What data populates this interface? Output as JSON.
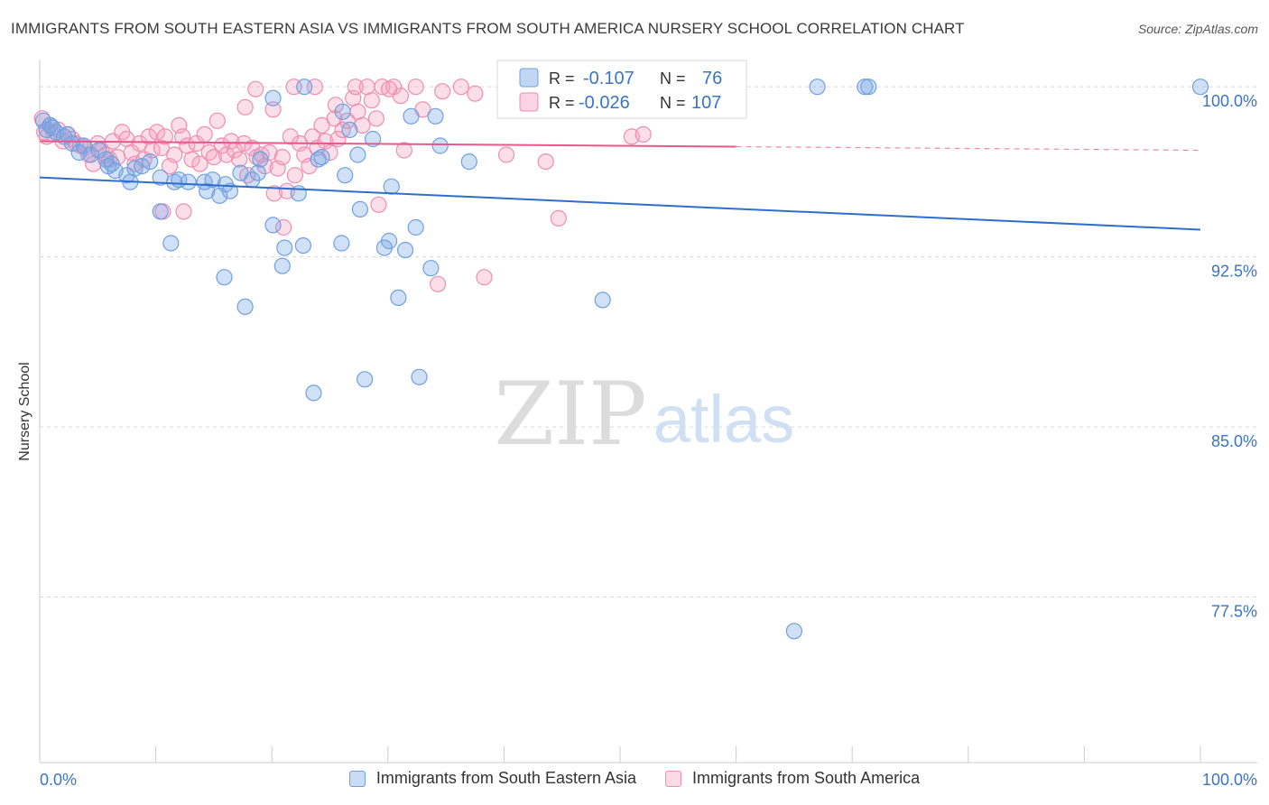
{
  "header": {
    "title": "IMMIGRANTS FROM SOUTH EASTERN ASIA VS IMMIGRANTS FROM SOUTH AMERICA NURSERY SCHOOL CORRELATION CHART",
    "source": "Source: ZipAtlas.com"
  },
  "watermark": {
    "zip": "ZIP",
    "atlas": "atlas"
  },
  "colors": {
    "blue": "#6fa0e0",
    "blue_fill": "rgba(120,165,230,0.35)",
    "blue_line": "#2e6fcc",
    "pink": "#f08db0",
    "pink_fill": "rgba(245,160,190,0.35)",
    "pink_line": "#e8588a",
    "axis_text": "#3a74c4"
  },
  "legend_box": {
    "r_label": "R =",
    "n_label": "N =",
    "rows": [
      {
        "series": "Immigrants from South Eastern Asia",
        "r": "-0.107",
        "n": "76"
      },
      {
        "series": "Immigrants from South America",
        "r": "-0.026",
        "n": "107"
      }
    ]
  },
  "chart_data": {
    "type": "scatter",
    "title": "IMMIGRANTS FROM SOUTH EASTERN ASIA VS IMMIGRANTS FROM SOUTH AMERICA NURSERY SCHOOL CORRELATION CHART",
    "xlabel": "",
    "ylabel": "Nursery School",
    "xlim": [
      0,
      100
    ],
    "ylim": [
      70.2,
      101.2
    ],
    "x_tick_labels": [
      "0.0%",
      "100.0%"
    ],
    "y_ticks": [
      77.5,
      85.0,
      92.5,
      100.0
    ],
    "y_tick_labels": [
      "77.5%",
      "85.0%",
      "92.5%",
      "100.0%"
    ],
    "grid": "horizontal dashed",
    "legend_position": "bottom",
    "series": [
      {
        "name": "Immigrants from South Eastern Asia",
        "color": "blue",
        "r": -0.107,
        "n": 76,
        "trend": {
          "x": [
            0,
            100
          ],
          "y": [
            96.0,
            93.7
          ],
          "dashed_from": null
        },
        "points": [
          [
            0.3,
            98.5
          ],
          [
            0.6,
            98.1
          ],
          [
            0.9,
            98.3
          ],
          [
            1.4,
            98.0
          ],
          [
            2.1,
            97.8
          ],
          [
            2.8,
            97.5
          ],
          [
            3.4,
            97.1
          ],
          [
            3.8,
            97.4
          ],
          [
            4.4,
            97.0
          ],
          [
            5.1,
            97.2
          ],
          [
            5.7,
            96.8
          ],
          [
            5.9,
            96.5
          ],
          [
            6.5,
            96.3
          ],
          [
            7.5,
            96.1
          ],
          [
            7.8,
            95.8
          ],
          [
            8.2,
            96.4
          ],
          [
            8.8,
            96.5
          ],
          [
            9.5,
            96.7
          ],
          [
            10.4,
            96.0
          ],
          [
            11.6,
            95.8
          ],
          [
            12.0,
            95.9
          ],
          [
            12.8,
            95.8
          ],
          [
            14.2,
            95.8
          ],
          [
            14.4,
            95.4
          ],
          [
            14.9,
            95.9
          ],
          [
            15.5,
            95.2
          ],
          [
            16.0,
            95.7
          ],
          [
            16.4,
            95.4
          ],
          [
            17.3,
            96.2
          ],
          [
            18.3,
            95.9
          ],
          [
            18.8,
            96.2
          ],
          [
            19.0,
            96.8
          ],
          [
            10.4,
            94.5
          ],
          [
            11.3,
            93.1
          ],
          [
            15.9,
            91.6
          ],
          [
            17.7,
            90.3
          ],
          [
            20.1,
            93.9
          ],
          [
            21.1,
            92.9
          ],
          [
            20.9,
            92.1
          ],
          [
            22.7,
            93.0
          ],
          [
            22.3,
            95.3
          ],
          [
            24.0,
            96.8
          ],
          [
            24.3,
            96.9
          ],
          [
            26.0,
            93.1
          ],
          [
            26.3,
            96.1
          ],
          [
            26.7,
            98.1
          ],
          [
            27.4,
            97.0
          ],
          [
            28.7,
            97.7
          ],
          [
            27.6,
            94.6
          ],
          [
            28.0,
            87.1
          ],
          [
            29.7,
            92.9
          ],
          [
            30.1,
            93.2
          ],
          [
            30.3,
            95.6
          ],
          [
            30.9,
            90.7
          ],
          [
            31.5,
            92.8
          ],
          [
            32.0,
            98.7
          ],
          [
            32.4,
            93.8
          ],
          [
            34.1,
            98.7
          ],
          [
            34.5,
            97.4
          ],
          [
            33.7,
            92.0
          ],
          [
            32.7,
            87.2
          ],
          [
            23.6,
            86.5
          ],
          [
            22.8,
            100.0
          ],
          [
            20.1,
            99.5
          ],
          [
            26.1,
            98.9
          ],
          [
            37.0,
            96.7
          ],
          [
            48.5,
            90.6
          ],
          [
            50.4,
            100.0
          ],
          [
            67.0,
            100.0
          ],
          [
            71.1,
            100.0
          ],
          [
            71.4,
            100.0
          ],
          [
            65.0,
            76.0
          ],
          [
            100.0,
            100.0
          ],
          [
            1.1,
            98.2
          ],
          [
            2.4,
            97.9
          ],
          [
            6.2,
            96.6
          ]
        ]
      },
      {
        "name": "Immigrants from South America",
        "color": "pink",
        "r": -0.026,
        "n": 107,
        "trend": {
          "x": [
            0,
            100
          ],
          "y": [
            97.6,
            97.2
          ],
          "dashed_from": 60
        },
        "points": [
          [
            0.2,
            98.6
          ],
          [
            0.4,
            98.0
          ],
          [
            0.6,
            97.8
          ],
          [
            0.9,
            98.3
          ],
          [
            1.2,
            97.9
          ],
          [
            1.6,
            98.1
          ],
          [
            2.0,
            97.6
          ],
          [
            2.4,
            97.9
          ],
          [
            2.8,
            97.7
          ],
          [
            3.1,
            97.5
          ],
          [
            3.5,
            97.4
          ],
          [
            3.9,
            97.3
          ],
          [
            4.2,
            97.0
          ],
          [
            4.6,
            96.6
          ],
          [
            5.0,
            97.5
          ],
          [
            5.3,
            97.2
          ],
          [
            5.7,
            97.0
          ],
          [
            6.0,
            96.8
          ],
          [
            6.3,
            97.6
          ],
          [
            6.7,
            96.9
          ],
          [
            7.1,
            98.0
          ],
          [
            7.5,
            97.7
          ],
          [
            7.9,
            97.1
          ],
          [
            8.2,
            96.6
          ],
          [
            8.6,
            97.5
          ],
          [
            9.0,
            96.8
          ],
          [
            9.4,
            97.8
          ],
          [
            9.7,
            97.2
          ],
          [
            10.1,
            98.0
          ],
          [
            10.5,
            97.3
          ],
          [
            10.8,
            97.8
          ],
          [
            11.2,
            96.5
          ],
          [
            11.6,
            97.0
          ],
          [
            12.0,
            98.3
          ],
          [
            12.3,
            97.8
          ],
          [
            12.7,
            97.4
          ],
          [
            13.1,
            96.8
          ],
          [
            13.5,
            97.5
          ],
          [
            13.8,
            96.6
          ],
          [
            14.2,
            97.9
          ],
          [
            14.6,
            97.1
          ],
          [
            15.0,
            96.9
          ],
          [
            15.3,
            98.5
          ],
          [
            15.7,
            97.4
          ],
          [
            16.1,
            97.0
          ],
          [
            16.5,
            97.6
          ],
          [
            16.8,
            97.2
          ],
          [
            17.2,
            96.8
          ],
          [
            17.6,
            97.5
          ],
          [
            17.9,
            96.1
          ],
          [
            18.3,
            97.3
          ],
          [
            18.7,
            96.9
          ],
          [
            19.1,
            97.0
          ],
          [
            19.4,
            96.5
          ],
          [
            19.8,
            97.1
          ],
          [
            20.2,
            95.3
          ],
          [
            20.5,
            96.4
          ],
          [
            20.9,
            96.9
          ],
          [
            21.3,
            95.4
          ],
          [
            21.6,
            97.8
          ],
          [
            22.0,
            96.1
          ],
          [
            22.4,
            97.5
          ],
          [
            22.8,
            97.0
          ],
          [
            23.2,
            96.5
          ],
          [
            23.5,
            97.8
          ],
          [
            23.9,
            97.3
          ],
          [
            24.3,
            98.3
          ],
          [
            24.6,
            97.6
          ],
          [
            25.0,
            97.1
          ],
          [
            25.4,
            98.6
          ],
          [
            25.7,
            97.7
          ],
          [
            26.1,
            98.1
          ],
          [
            26.5,
            98.5
          ],
          [
            27.0,
            99.5
          ],
          [
            27.4,
            98.9
          ],
          [
            27.8,
            98.3
          ],
          [
            28.2,
            100.0
          ],
          [
            28.6,
            99.4
          ],
          [
            29.0,
            98.6
          ],
          [
            29.5,
            100.0
          ],
          [
            30.5,
            100.0
          ],
          [
            31.1,
            99.6
          ],
          [
            31.4,
            97.2
          ],
          [
            32.4,
            100.0
          ],
          [
            33.0,
            99.0
          ],
          [
            34.7,
            99.8
          ],
          [
            36.3,
            100.0
          ],
          [
            37.5,
            99.7
          ],
          [
            10.6,
            94.5
          ],
          [
            12.4,
            94.5
          ],
          [
            21.0,
            93.8
          ],
          [
            29.2,
            94.8
          ],
          [
            34.3,
            91.3
          ],
          [
            38.3,
            91.6
          ],
          [
            40.2,
            97.0
          ],
          [
            43.6,
            96.7
          ],
          [
            44.7,
            94.2
          ],
          [
            51.0,
            97.8
          ],
          [
            52.0,
            97.9
          ],
          [
            17.7,
            99.1
          ],
          [
            18.6,
            99.9
          ],
          [
            20.1,
            99.0
          ],
          [
            21.9,
            100.0
          ],
          [
            23.7,
            100.0
          ],
          [
            25.5,
            99.2
          ],
          [
            27.2,
            100.0
          ],
          [
            30.1,
            99.9
          ]
        ]
      }
    ]
  },
  "bottom_legend": {
    "items": [
      {
        "label": "Immigrants from South Eastern Asia"
      },
      {
        "label": "Immigrants from South America"
      }
    ]
  }
}
